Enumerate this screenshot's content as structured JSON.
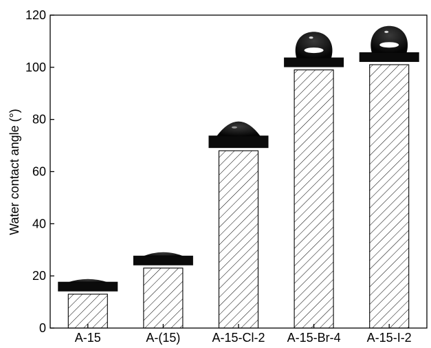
{
  "chart_data": {
    "type": "bar",
    "title": "",
    "xlabel": "",
    "ylabel": "Water contact angle (°)",
    "categories": [
      "A-15",
      "A-(15)",
      "A-15-Cl-2",
      "A-15-Br-4",
      "A-15-I-2"
    ],
    "values": [
      13,
      23,
      68,
      99,
      101
    ],
    "ylim": [
      0,
      120
    ],
    "yticks": [
      0,
      20,
      40,
      60,
      80,
      100,
      120
    ],
    "bar_fill": "hatched-diagonal",
    "grid": false,
    "legend": "none",
    "insets": "water droplet photographs above each bar",
    "colors": {
      "bar_edge": "#000000",
      "hatch": "#000000",
      "droplet": "#111111",
      "background": "#ffffff"
    }
  }
}
